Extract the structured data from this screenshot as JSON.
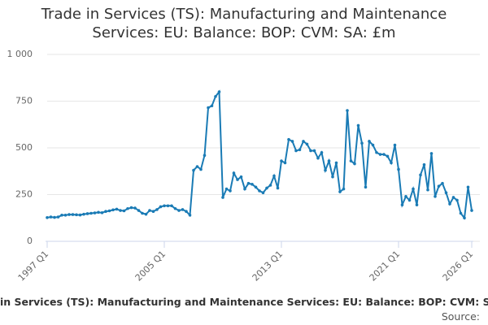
{
  "chart_data": {
    "type": "line",
    "title": "Trade in Services (TS): Manufacturing and Maintenance Services: EU: Balance: BOP: CVM: SA: £m",
    "source_label": "Source:",
    "categories": [
      "1997 Q1",
      null,
      null,
      null,
      null,
      null,
      null,
      null,
      null,
      null,
      null,
      null,
      null,
      null,
      null,
      null,
      null,
      null,
      null,
      null,
      null,
      null,
      null,
      null,
      null,
      null,
      null,
      null,
      null,
      null,
      null,
      null,
      "2005 Q1",
      null,
      null,
      null,
      null,
      null,
      null,
      null,
      null,
      null,
      null,
      null,
      null,
      null,
      null,
      null,
      null,
      null,
      null,
      null,
      null,
      null,
      null,
      null,
      null,
      null,
      null,
      null,
      null,
      null,
      null,
      null,
      "2013 Q1",
      null,
      null,
      null,
      null,
      null,
      null,
      null,
      null,
      null,
      null,
      null,
      null,
      null,
      null,
      null,
      null,
      null,
      null,
      null,
      null,
      null,
      null,
      null,
      null,
      null,
      null,
      null,
      null,
      null,
      null,
      null,
      "2021 Q1",
      null,
      null,
      null,
      null,
      null,
      null,
      null,
      null,
      null,
      null,
      null,
      null,
      null,
      null,
      null,
      null,
      null,
      null,
      null,
      "2026 Q1"
    ],
    "series": [
      {
        "color": "#1a7bb5",
        "values": [
          127,
          130,
          128,
          130,
          140,
          140,
          143,
          143,
          142,
          141,
          145,
          148,
          150,
          152,
          155,
          153,
          160,
          163,
          168,
          172,
          165,
          163,
          175,
          180,
          178,
          165,
          150,
          145,
          165,
          160,
          170,
          185,
          190,
          190,
          190,
          175,
          165,
          170,
          160,
          140,
          380,
          400,
          385,
          460,
          715,
          725,
          775,
          800,
          235,
          280,
          270,
          365,
          330,
          345,
          280,
          310,
          305,
          290,
          270,
          260,
          285,
          300,
          350,
          285,
          430,
          420,
          545,
          535,
          485,
          490,
          535,
          520,
          485,
          485,
          445,
          475,
          380,
          430,
          345,
          420,
          265,
          280,
          700,
          430,
          415,
          620,
          525,
          290,
          535,
          515,
          475,
          465,
          465,
          455,
          420,
          515,
          385,
          195,
          240,
          220,
          280,
          195,
          355,
          410,
          275,
          470,
          240,
          295,
          310,
          260,
          200,
          235,
          220,
          150,
          125,
          290,
          165
        ]
      }
    ],
    "ylim": [
      0,
      1000
    ],
    "yticks": [
      0,
      250,
      500,
      750,
      {
        "value": 1000,
        "label": "1 000"
      }
    ],
    "grid": true
  }
}
